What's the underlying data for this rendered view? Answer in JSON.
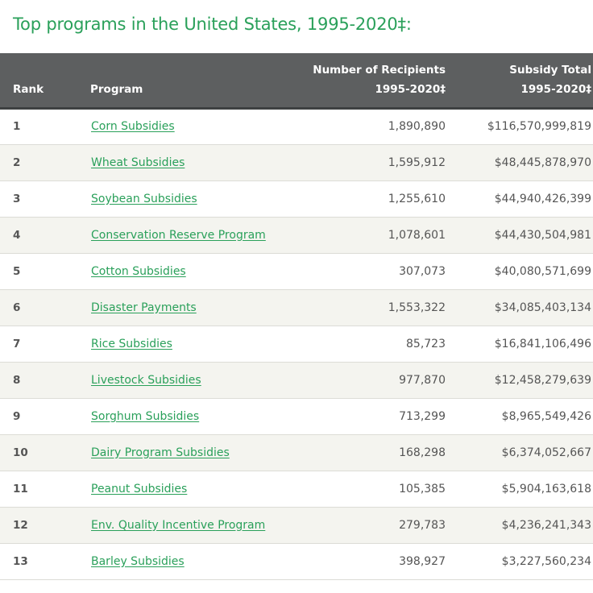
{
  "page": {
    "title": "Top programs in the United States, 1995-2020‡:"
  },
  "table": {
    "headers": {
      "rank": "Rank",
      "program": "Program",
      "recipients_line1": "Number of Recipients",
      "recipients_line2": "1995-2020‡",
      "total_line1": "Subsidy Total",
      "total_line2": "1995-2020‡"
    },
    "rows": [
      {
        "rank": "1",
        "program": "Corn Subsidies",
        "recipients": "1,890,890",
        "total": "$116,570,999,819"
      },
      {
        "rank": "2",
        "program": "Wheat Subsidies",
        "recipients": "1,595,912",
        "total": "$48,445,878,970"
      },
      {
        "rank": "3",
        "program": "Soybean Subsidies",
        "recipients": "1,255,610",
        "total": "$44,940,426,399"
      },
      {
        "rank": "4",
        "program": "Conservation Reserve Program",
        "recipients": "1,078,601",
        "total": "$44,430,504,981"
      },
      {
        "rank": "5",
        "program": "Cotton Subsidies",
        "recipients": "307,073",
        "total": "$40,080,571,699"
      },
      {
        "rank": "6",
        "program": "Disaster Payments",
        "recipients": "1,553,322",
        "total": "$34,085,403,134"
      },
      {
        "rank": "7",
        "program": "Rice Subsidies",
        "recipients": "85,723",
        "total": "$16,841,106,496"
      },
      {
        "rank": "8",
        "program": "Livestock Subsidies",
        "recipients": "977,870",
        "total": "$12,458,279,639"
      },
      {
        "rank": "9",
        "program": "Sorghum Subsidies",
        "recipients": "713,299",
        "total": "$8,965,549,426"
      },
      {
        "rank": "10",
        "program": "Dairy Program Subsidies",
        "recipients": "168,298",
        "total": "$6,374,052,667"
      },
      {
        "rank": "11",
        "program": "Peanut Subsidies",
        "recipients": "105,385",
        "total": "$5,904,163,618"
      },
      {
        "rank": "12",
        "program": "Env. Quality Incentive Program",
        "recipients": "279,783",
        "total": "$4,236,241,343"
      },
      {
        "rank": "13",
        "program": "Barley Subsidies",
        "recipients": "398,927",
        "total": "$3,227,560,234"
      }
    ]
  },
  "colors": {
    "accent_green": "#2aa05a",
    "header_bg": "#5d5f60",
    "row_alt_bg": "#f4f4ef"
  }
}
